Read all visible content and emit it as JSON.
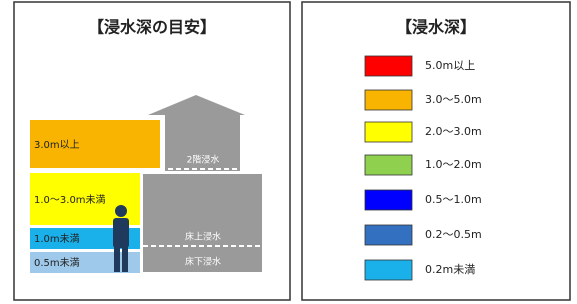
{
  "left": {
    "title": "【浸水深の目安】",
    "levels": [
      "3.0m以上",
      "1.0～3.0m未満",
      "1.0m未満",
      "0.5m未満"
    ],
    "house": [
      "2階浸水",
      "床上浸水",
      "床下浸水"
    ]
  },
  "right": {
    "title": "【浸水深】",
    "legend": [
      "5.0m以上",
      "3.0～5.0m",
      "2.0～3.0m",
      "1.0～2.0m",
      "0.5～1.0m",
      "0.2～0.5m",
      "0.2m未満"
    ]
  }
}
